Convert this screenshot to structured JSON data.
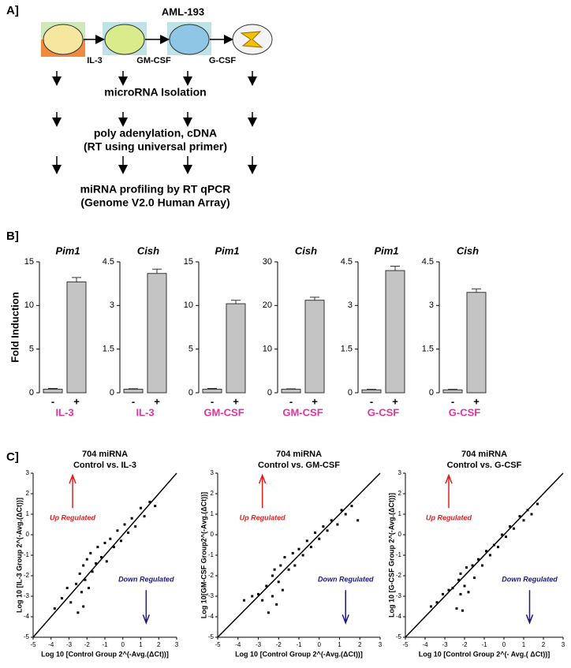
{
  "panel_labels": [
    "A]",
    "B]",
    "C]"
  ],
  "panel_a": {
    "title": "AML-193",
    "cytokines": [
      "IL-3",
      "GM-CSF",
      "G-CSF"
    ],
    "steps": [
      "microRNA Isolation",
      "poly adenylation, cDNA",
      "(RT using universal primer)",
      "miRNA profiling by RT qPCR",
      "(Genome V2.0 Human Array)"
    ]
  },
  "chart_data": [
    {
      "type": "bar",
      "title": "Pim1",
      "ylabel": "Fold Induction",
      "categories": [
        "-",
        "+"
      ],
      "xlabel": "IL-3",
      "values": [
        0.4,
        12.7
      ],
      "errors": [
        0.1,
        0.5
      ],
      "ylim": [
        0,
        15
      ],
      "yticks": [
        0,
        5,
        10,
        15
      ],
      "color": "#c4c4c4"
    },
    {
      "type": "bar",
      "title": "Cish",
      "categories": [
        "-",
        "+"
      ],
      "xlabel": "IL-3",
      "values": [
        0.12,
        4.1
      ],
      "errors": [
        0.02,
        0.15
      ],
      "ylim": [
        0,
        4.5
      ],
      "yticks": [
        0,
        1.5,
        3,
        4.5
      ],
      "color": "#c4c4c4"
    },
    {
      "type": "bar",
      "title": "Pim1",
      "categories": [
        "-",
        "+"
      ],
      "xlabel": "GM-CSF",
      "values": [
        0.4,
        10.2
      ],
      "errors": [
        0.1,
        0.4
      ],
      "ylim": [
        0,
        15
      ],
      "yticks": [
        0,
        5,
        10,
        15
      ],
      "color": "#c4c4c4"
    },
    {
      "type": "bar",
      "title": "Cish",
      "categories": [
        "-",
        "+"
      ],
      "xlabel": "GM-CSF",
      "values": [
        0.8,
        21.2
      ],
      "errors": [
        0.1,
        0.7
      ],
      "ylim": [
        0,
        30
      ],
      "yticks": [
        0,
        10,
        20,
        30
      ],
      "color": "#c4c4c4"
    },
    {
      "type": "bar",
      "title": "Pim1",
      "categories": [
        "-",
        "+"
      ],
      "xlabel": "G-CSF",
      "values": [
        0.1,
        4.2
      ],
      "errors": [
        0.02,
        0.15
      ],
      "ylim": [
        0,
        4.5
      ],
      "yticks": [
        0,
        1.5,
        3,
        4.5
      ],
      "color": "#c4c4c4"
    },
    {
      "type": "bar",
      "title": "Cish",
      "categories": [
        "-",
        "+"
      ],
      "xlabel": "G-CSF",
      "values": [
        0.1,
        3.45
      ],
      "errors": [
        0.02,
        0.12
      ],
      "ylim": [
        0,
        4.5
      ],
      "yticks": [
        0,
        1.5,
        3,
        4.5
      ],
      "color": "#c4c4c4"
    },
    {
      "type": "scatter",
      "title": "704 miRNA",
      "subtitle": "Control vs. IL-3",
      "xlabel": "Log 10 [Control Group 2^(-Avg.(ΔCt))]",
      "ylabel": "Log 10 [IL-3 Group 2^(-Avg.(ΔCt))]",
      "annotations": [
        "Up Regulated",
        "Down Regulated"
      ],
      "xlim": [
        -5,
        3
      ],
      "ylim": [
        -5,
        3
      ],
      "xticks": [
        -5,
        -4,
        -3,
        -2,
        -1,
        0,
        1,
        2,
        3
      ],
      "yticks": [
        -5,
        -4,
        -3,
        -2,
        -1,
        0,
        1,
        2,
        3
      ],
      "x": [
        -3.8,
        -3.4,
        -3.1,
        -2.9,
        -2.6,
        -2.5,
        -2.4,
        -2.3,
        -2.2,
        -2.2,
        -2.1,
        -2.0,
        -1.9,
        -1.8,
        -1.7,
        -1.5,
        -1.4,
        -1.2,
        -1.0,
        -0.9,
        -0.7,
        -0.5,
        -0.3,
        -0.1,
        0.1,
        0.3,
        0.5,
        0.7,
        1.0,
        1.2,
        1.5,
        1.8
      ],
      "values": [
        -3.6,
        -3.1,
        -2.6,
        -3.3,
        -2.4,
        -3.8,
        -1.9,
        -2.8,
        -1.5,
        -3.5,
        -2.2,
        -1.2,
        -2.6,
        -0.9,
        -1.8,
        -1.4,
        -0.6,
        -1.1,
        -0.4,
        -1.3,
        -0.2,
        -0.6,
        0.2,
        -0.3,
        0.5,
        0.1,
        0.8,
        0.4,
        1.3,
        0.9,
        1.6,
        1.4
      ]
    },
    {
      "type": "scatter",
      "title": "704 miRNA",
      "subtitle": "Control vs. GM-CSF",
      "xlabel": "Log 10 [Control Group 2^(-Avg.(ΔCt))]",
      "ylabel": "Log 10[GM-CSF Group2^(-Avg.(ΔCt))]",
      "annotations": [
        "Up Regulated",
        "Down Regulated"
      ],
      "xlim": [
        -5,
        3
      ],
      "ylim": [
        -5,
        3
      ],
      "xticks": [
        -5,
        -4,
        -3,
        -2,
        -1,
        0,
        1,
        2,
        3
      ],
      "yticks": [
        -5,
        -4,
        -3,
        -2,
        -1,
        0,
        1,
        2,
        3
      ],
      "x": [
        -3.7,
        -3.3,
        -3.0,
        -2.8,
        -2.6,
        -2.5,
        -2.3,
        -2.3,
        -2.2,
        -2.1,
        -2.0,
        -1.9,
        -1.8,
        -1.7,
        -1.5,
        -1.3,
        -1.2,
        -1.0,
        -0.8,
        -0.6,
        -0.4,
        -0.2,
        0.0,
        0.2,
        0.4,
        0.6,
        0.9,
        1.1,
        1.3,
        1.6,
        1.9
      ],
      "values": [
        -3.2,
        -3.0,
        -2.9,
        -3.2,
        -2.5,
        -3.8,
        -2.0,
        -3.0,
        -1.7,
        -3.4,
        -2.3,
        -1.5,
        -2.7,
        -1.1,
        -1.7,
        -0.9,
        -1.5,
        -0.7,
        -1.0,
        -0.3,
        -0.6,
        0.1,
        -0.2,
        0.4,
        0.2,
        0.7,
        0.5,
        1.2,
        1.0,
        1.4,
        0.7
      ]
    },
    {
      "type": "scatter",
      "title": "704 miRNA",
      "subtitle": "Control vs. G-CSF",
      "xlabel": "Log 10 [Control Group 2^(- Avg.( ΔCt))]",
      "ylabel": "Log 10 [G-CSF Group 2^(-Avg.(ΔCt))]",
      "annotations": [
        "Up Regulated",
        "Down Regulated"
      ],
      "xlim": [
        -5,
        3
      ],
      "ylim": [
        -5,
        3
      ],
      "xticks": [
        -5,
        -4,
        -3,
        -2,
        -1,
        0,
        1,
        2,
        3
      ],
      "yticks": [
        -5,
        -4,
        -3,
        -2,
        -1,
        0,
        1,
        2,
        3
      ],
      "x": [
        -3.7,
        -3.4,
        -3.1,
        -2.8,
        -2.6,
        -2.4,
        -2.3,
        -2.2,
        -2.2,
        -2.1,
        -2.0,
        -1.9,
        -1.8,
        -1.6,
        -1.5,
        -1.3,
        -1.1,
        -0.9,
        -0.7,
        -0.5,
        -0.3,
        -0.1,
        0.1,
        0.3,
        0.5,
        0.8,
        1.0,
        1.2,
        1.4,
        1.7
      ],
      "values": [
        -3.5,
        -3.3,
        -2.9,
        -2.7,
        -2.6,
        -3.6,
        -2.2,
        -2.9,
        -1.9,
        -3.7,
        -2.5,
        -1.6,
        -2.8,
        -1.5,
        -2.1,
        -1.2,
        -1.5,
        -0.8,
        -1.0,
        -0.5,
        -0.6,
        0.0,
        -0.1,
        0.4,
        0.3,
        0.9,
        0.7,
        1.2,
        1.0,
        1.5
      ]
    }
  ]
}
